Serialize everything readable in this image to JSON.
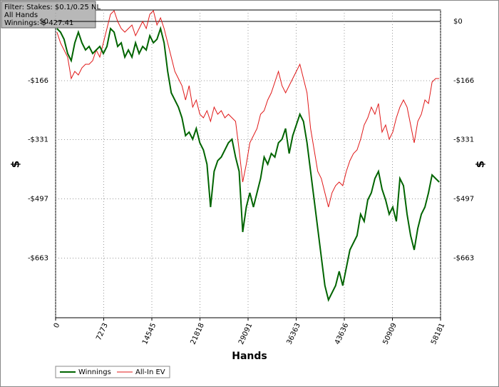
{
  "filter_box": {
    "lines": [
      "Filter: Stakes: $0.1/0.25 NL",
      "All Hands",
      "Winnings: $-427.41"
    ]
  },
  "chart_data": {
    "type": "line",
    "x_label": "Hands",
    "y_label": "$",
    "y2_label": "$",
    "x": [
      200,
      740,
      1280,
      1820,
      2360,
      2900,
      3440,
      3980,
      4520,
      5060,
      5600,
      6140,
      6680,
      7220,
      7760,
      8300,
      8840,
      9380,
      9920,
      10460,
      11000,
      11540,
      12080,
      12620,
      13160,
      13700,
      14240,
      14780,
      15320,
      15860,
      16400,
      16940,
      17480,
      18020,
      18560,
      19100,
      19640,
      20180,
      20720,
      21260,
      21800,
      22340,
      22880,
      23420,
      23960,
      24500,
      25040,
      25580,
      26120,
      26660,
      27200,
      27740,
      28280,
      28820,
      29360,
      29900,
      30440,
      30980,
      31520,
      32060,
      32600,
      33140,
      33680,
      34220,
      34760,
      35300,
      35840,
      36380,
      36920,
      37460,
      38000,
      38540,
      39080,
      39620,
      40160,
      40700,
      41240,
      41780,
      42320,
      42860,
      43400,
      43940,
      44480,
      45020,
      45560,
      46100,
      46640,
      47180,
      47720,
      48260,
      48800,
      49340,
      49880,
      50420,
      50960,
      51500,
      52040,
      52580,
      53120,
      53660,
      54200,
      54740,
      55280,
      55820,
      56360,
      56900,
      57440,
      57980
    ],
    "series": [
      {
        "name": "Winnings",
        "color": "#006400",
        "width": 2,
        "values": [
          -20,
          -30,
          -50,
          -90,
          -110,
          -60,
          -30,
          -60,
          -80,
          -70,
          -90,
          -80,
          -70,
          -90,
          -70,
          -20,
          -30,
          -70,
          -60,
          -100,
          -80,
          -100,
          -60,
          -90,
          -70,
          -80,
          -40,
          -60,
          -50,
          -20,
          -60,
          -140,
          -200,
          -220,
          -240,
          -270,
          -320,
          -310,
          -330,
          -300,
          -340,
          -360,
          -400,
          -520,
          -420,
          -390,
          -380,
          -360,
          -340,
          -330,
          -380,
          -420,
          -590,
          -520,
          -480,
          -520,
          -480,
          -440,
          -380,
          -400,
          -370,
          -380,
          -340,
          -330,
          -300,
          -370,
          -320,
          -290,
          -260,
          -280,
          -340,
          -420,
          -500,
          -580,
          -660,
          -740,
          -780,
          -760,
          -740,
          -700,
          -740,
          -690,
          -640,
          -620,
          -600,
          -540,
          -560,
          -500,
          -480,
          -440,
          -420,
          -470,
          -500,
          -540,
          -520,
          -560,
          -440,
          -460,
          -540,
          -600,
          -640,
          -580,
          -540,
          -520,
          -480,
          -430,
          -440,
          -450
        ]
      },
      {
        "name": "All-In EV",
        "color": "#e01818",
        "width": 1,
        "values": [
          -30,
          -60,
          -80,
          -100,
          -160,
          -140,
          -150,
          -130,
          -120,
          -120,
          -110,
          -80,
          -100,
          -60,
          -20,
          20,
          30,
          0,
          -20,
          -30,
          -20,
          -10,
          -40,
          -20,
          0,
          -20,
          20,
          30,
          -10,
          10,
          -20,
          -60,
          -100,
          -140,
          -160,
          -180,
          -220,
          -180,
          -240,
          -220,
          -260,
          -270,
          -250,
          -280,
          -240,
          -260,
          -250,
          -270,
          -260,
          -270,
          -280,
          -360,
          -450,
          -400,
          -340,
          -320,
          -300,
          -260,
          -250,
          -220,
          -200,
          -170,
          -140,
          -180,
          -200,
          -180,
          -160,
          -140,
          -120,
          -160,
          -200,
          -300,
          -360,
          -420,
          -440,
          -480,
          -520,
          -480,
          -460,
          -450,
          -460,
          -420,
          -390,
          -370,
          -360,
          -330,
          -290,
          -270,
          -240,
          -260,
          -230,
          -310,
          -290,
          -330,
          -310,
          -270,
          -240,
          -220,
          -240,
          -290,
          -340,
          -280,
          -260,
          -220,
          -230,
          -170,
          -160,
          -160
        ]
      }
    ],
    "xlim": [
      0,
      58181
    ],
    "xticks": [
      0,
      7273,
      14545,
      21818,
      29091,
      36363,
      43636,
      50909,
      58181
    ],
    "ylim": [
      -830,
      32
    ],
    "yticks": [
      {
        "value": 0,
        "label": "$0"
      },
      {
        "value": -166,
        "label": "-$166"
      },
      {
        "value": -331,
        "label": "-$331"
      },
      {
        "value": -497,
        "label": "-$497"
      },
      {
        "value": -663,
        "label": "-$663"
      }
    ],
    "grid": true,
    "legend": "bottom-left"
  }
}
